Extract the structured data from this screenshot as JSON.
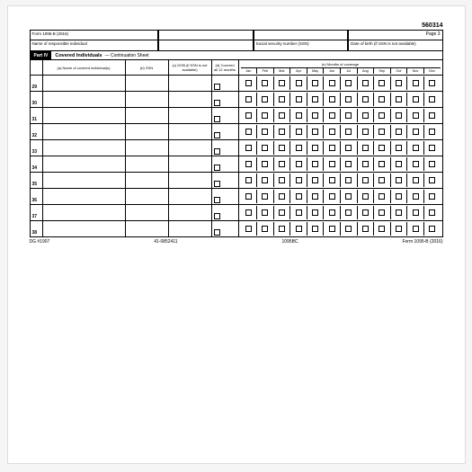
{
  "product_code": "560314",
  "header": {
    "form_ref": "Form 1095-B (2016)",
    "page_label": "Page 3",
    "name_label": "Name of responsible individual",
    "ssn_label": "Social security number (SSN)",
    "dob_label": "Date of birth (if SSN is not available)"
  },
  "part": {
    "badge": "Part IV",
    "title": "Covered Individuals",
    "sub": "— Continuation Sheet"
  },
  "columns": {
    "a": "(a) Name of covered individual(s)",
    "b": "(b) SSN",
    "c": "(c) DOB (if SSN is not available)",
    "d": "(d) Covered all 12 months",
    "e": "(e) Months of coverage"
  },
  "months": [
    "Jan",
    "Feb",
    "Mar",
    "Apr",
    "May",
    "Jun",
    "Jul",
    "Aug",
    "Sep",
    "Oct",
    "Nov",
    "Dec"
  ],
  "row_numbers": [
    "29",
    "30",
    "31",
    "32",
    "33",
    "34",
    "35",
    "36",
    "37",
    "38"
  ],
  "footer": {
    "left": "DG #1907",
    "mid1": "41-0852411",
    "mid2": "1095BC",
    "right": "Form 1095-B (2016)"
  },
  "colors": {
    "page_bg": "#ffffff",
    "outer_bg": "#f5f5f5",
    "line": "#000000"
  }
}
